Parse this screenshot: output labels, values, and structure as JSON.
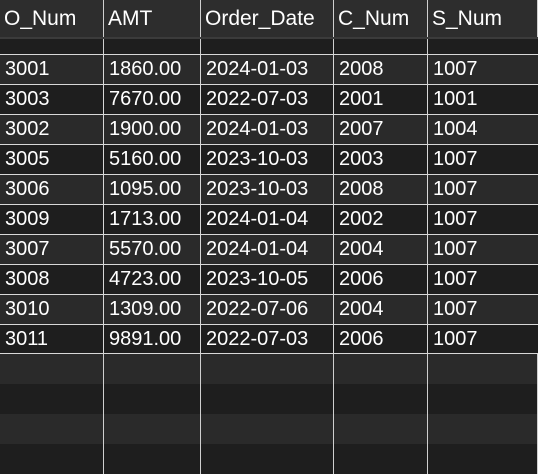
{
  "columns": [
    "O_Num",
    "AMT",
    "Order_Date",
    "C_Num",
    "S_Num"
  ],
  "rows": [
    [
      "3001",
      "1860.00",
      "2024-01-03",
      "2008",
      "1007"
    ],
    [
      "3003",
      "7670.00",
      "2022-07-03",
      "2001",
      "1001"
    ],
    [
      "3002",
      "1900.00",
      "2024-01-03",
      "2007",
      "1004"
    ],
    [
      "3005",
      "5160.00",
      "2023-10-03",
      "2003",
      "1007"
    ],
    [
      "3006",
      "1095.00",
      "2023-10-03",
      "2008",
      "1007"
    ],
    [
      "3009",
      "1713.00",
      "2024-01-04",
      "2002",
      "1007"
    ],
    [
      "3007",
      "5570.00",
      "2024-01-04",
      "2004",
      "1007"
    ],
    [
      "3008",
      "4723.00",
      "2023-10-05",
      "2006",
      "1007"
    ],
    [
      "3010",
      "1309.00",
      "2022-07-06",
      "2004",
      "1007"
    ],
    [
      "3011",
      "9891.00",
      "2022-07-03",
      "2006",
      "1007"
    ]
  ],
  "colors": {
    "background": "#1e1e1e",
    "row_alt": "#2a2a2a",
    "header": "#2d2d2d",
    "text": "#ffffff",
    "grid_line": "#d8d8d8"
  }
}
